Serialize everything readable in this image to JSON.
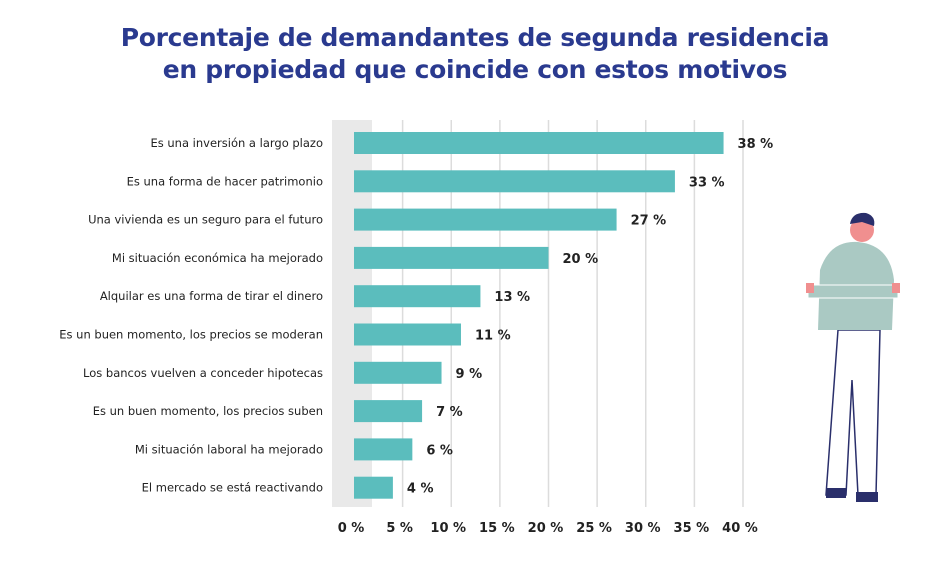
{
  "chart_data": {
    "type": "bar",
    "orientation": "horizontal",
    "title_lines": [
      "Porcentaje de demandantes de segunda residencia",
      "en propiedad que coincide con estos motivos"
    ],
    "categories": [
      "Es una inversión a largo plazo",
      "Es una forma de hacer patrimonio",
      "Una vivienda es un seguro para el futuro",
      "Mi situación económica ha mejorado",
      "Alquilar es una forma de tirar el dinero",
      "Es un buen momento, los precios se moderan",
      "Los bancos vuelven a conceder hipotecas",
      "Es un buen momento, los precios suben",
      "Mi situación laboral ha mejorado",
      "El mercado se está reactivando"
    ],
    "values": [
      38,
      33,
      27,
      20,
      13,
      11,
      9,
      7,
      6,
      4
    ],
    "data_labels": [
      "38 %",
      "33 %",
      "27 %",
      "20 %",
      "13 %",
      "11 %",
      "9 %",
      "7 %",
      "6 %",
      "4 %"
    ],
    "xlim": [
      0,
      40
    ],
    "xticks": [
      0,
      5,
      10,
      15,
      20,
      25,
      30,
      35,
      40
    ],
    "xtick_labels": [
      "0 %",
      "5 %",
      "10 %",
      "15 %",
      "20 %",
      "25 %",
      "30 %",
      "35 %",
      "40 %"
    ],
    "grid": "vertical",
    "colors": {
      "bar": "#5bbdbd",
      "title": "#2a3a8f",
      "grid": "#dcdcdc",
      "band": "#e9e9e9"
    }
  }
}
